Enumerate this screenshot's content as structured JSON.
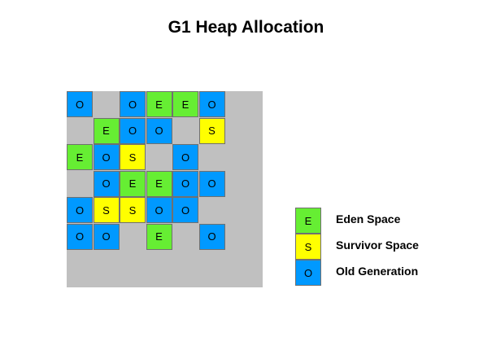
{
  "title": "G1 Heap Allocation",
  "colors": {
    "eden": "#66ee33",
    "survivor": "#ffff00",
    "old": "#0099ff",
    "free": "#c0c0c0"
  },
  "grid": {
    "rows": 7,
    "cols": 7,
    "cells": [
      [
        "O",
        "",
        "O",
        "E",
        "E",
        "O",
        ""
      ],
      [
        "",
        "E",
        "O",
        "O",
        "",
        "S",
        ""
      ],
      [
        "E",
        "O",
        "S",
        "",
        "O",
        "",
        ""
      ],
      [
        "",
        "O",
        "E",
        "E",
        "O",
        "O",
        ""
      ],
      [
        "O",
        "S",
        "S",
        "O",
        "O",
        "",
        ""
      ],
      [
        "O",
        "O",
        "",
        "E",
        "",
        "O",
        ""
      ],
      [
        "",
        "",
        "",
        "",
        "",
        "",
        ""
      ]
    ]
  },
  "legend": [
    {
      "type": "eden",
      "symbol": "E",
      "label": "Eden Space"
    },
    {
      "type": "surv",
      "symbol": "S",
      "label": "Survivor Space"
    },
    {
      "type": "old",
      "symbol": "O",
      "label": "Old Generation"
    }
  ]
}
